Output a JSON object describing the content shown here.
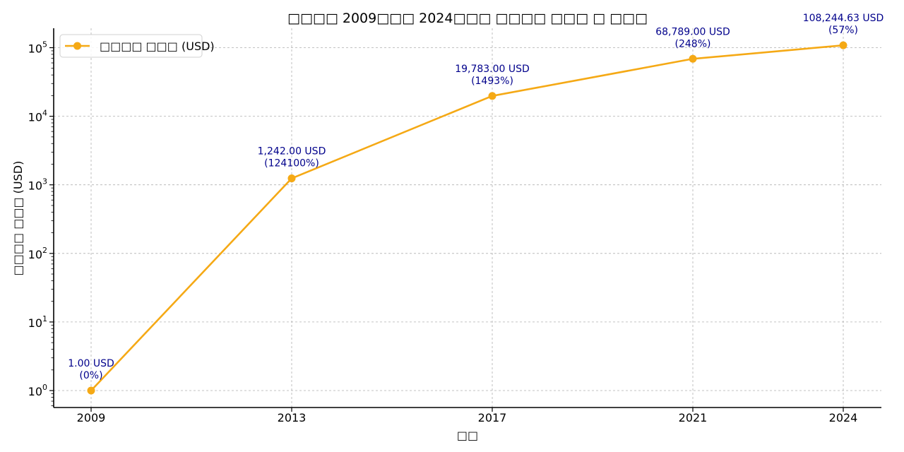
{
  "chart_data": {
    "type": "line",
    "title": "□□□□ 2009□□□ 2024□□□ □□□□ □□□ □ □□□",
    "xlabel": "□□",
    "ylabel": "□□□□ □□□ (USD)",
    "yscale": "log",
    "ylim": [
      0.6,
      180000
    ],
    "grid": true,
    "legend_position": "upper left",
    "categories": [
      "2009",
      "2013",
      "2017",
      "2021",
      "2024"
    ],
    "series": [
      {
        "name": "□□□□ □□□ (USD)",
        "color": "#f5a915",
        "x": [
          2009,
          2013,
          2017,
          2021,
          2024
        ],
        "values": [
          1.0,
          1242.0,
          19783.0,
          68789.0,
          108244.63
        ],
        "annotations": [
          {
            "value": "1.00 USD",
            "pct": "(0%)"
          },
          {
            "value": "1,242.00 USD",
            "pct": "(124100%)"
          },
          {
            "value": "19,783.00 USD",
            "pct": "(1493%)"
          },
          {
            "value": "68,789.00 USD",
            "pct": "(248%)"
          },
          {
            "value": "108,244.63 USD",
            "pct": "(57%)"
          }
        ]
      }
    ],
    "yticks": [
      {
        "base": "10",
        "exp": "0"
      },
      {
        "base": "10",
        "exp": "1"
      },
      {
        "base": "10",
        "exp": "2"
      },
      {
        "base": "10",
        "exp": "3"
      },
      {
        "base": "10",
        "exp": "4"
      },
      {
        "base": "10",
        "exp": "5"
      }
    ],
    "xticks": [
      "2009",
      "2013",
      "2017",
      "2021",
      "2024"
    ]
  },
  "colors": {
    "line": "#f5a915",
    "annotation": "#00008b",
    "grid": "#b0b0b0"
  }
}
